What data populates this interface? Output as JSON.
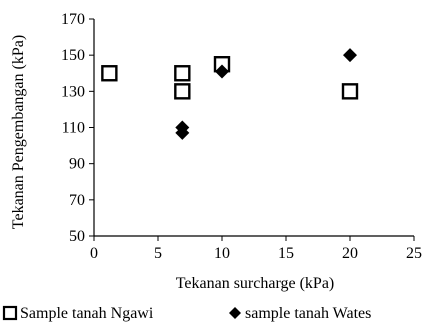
{
  "chart_data": {
    "type": "scatter",
    "title": "",
    "xlabel": "Tekanan surcharge  (kPa)",
    "ylabel": "Tekanan Pengembangan (kPa)",
    "xlim": [
      0,
      25
    ],
    "ylim": [
      50,
      170
    ],
    "xticks": [
      0,
      5,
      10,
      15,
      20,
      25
    ],
    "yticks": [
      50,
      70,
      90,
      110,
      130,
      150,
      170
    ],
    "grid": false,
    "legend_position": "bottom",
    "series": [
      {
        "name": "Sample tanah Ngawi",
        "marker": "open-square",
        "color": "#000000",
        "points": [
          {
            "x": 1.2,
            "y": 140
          },
          {
            "x": 6.9,
            "y": 140
          },
          {
            "x": 6.9,
            "y": 130
          },
          {
            "x": 10.0,
            "y": 145
          },
          {
            "x": 20.0,
            "y": 130
          }
        ]
      },
      {
        "name": "sample tanah Wates",
        "marker": "filled-diamond",
        "color": "#000000",
        "points": [
          {
            "x": 6.9,
            "y": 110
          },
          {
            "x": 6.9,
            "y": 107
          },
          {
            "x": 10.0,
            "y": 141
          },
          {
            "x": 20.0,
            "y": 150
          }
        ]
      }
    ]
  }
}
